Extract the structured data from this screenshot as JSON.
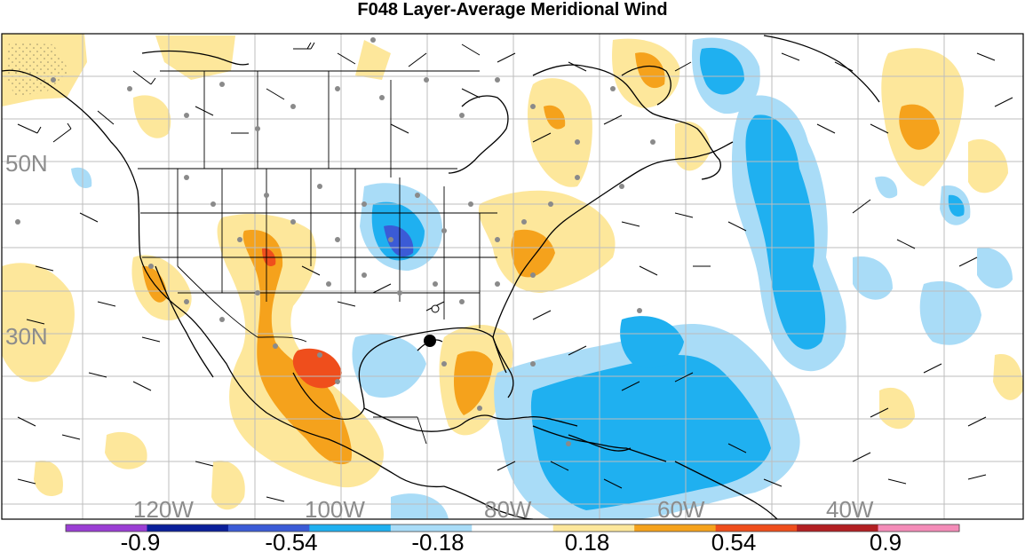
{
  "title": "F048 Layer-Average Meridional Wind",
  "latitude_labels": [
    "50N",
    "30N"
  ],
  "longitude_labels": [
    "120W",
    "100W",
    "80W",
    "60W",
    "40W"
  ],
  "colorbar": {
    "tick_labels": [
      "-0.9",
      "-0.54",
      "-0.18",
      "0.18",
      "0.54",
      "0.9"
    ],
    "bins": [
      {
        "color": "#9b3fd4"
      },
      {
        "color": "#0a1f9a"
      },
      {
        "color": "#3b5bd6"
      },
      {
        "color": "#1fb0f0"
      },
      {
        "color": "#a9dcf7"
      },
      {
        "color": "#ffffff"
      },
      {
        "color": "#fde79b"
      },
      {
        "color": "#f5a21c"
      },
      {
        "color": "#ef4e1c"
      },
      {
        "color": "#b21f22"
      },
      {
        "color": "#f48cb8"
      }
    ]
  },
  "map_colors": {
    "ocean": "#ffffff",
    "grid": "#bdbdbd",
    "coastline": "#000000",
    "station": "#8a8a8a"
  }
}
